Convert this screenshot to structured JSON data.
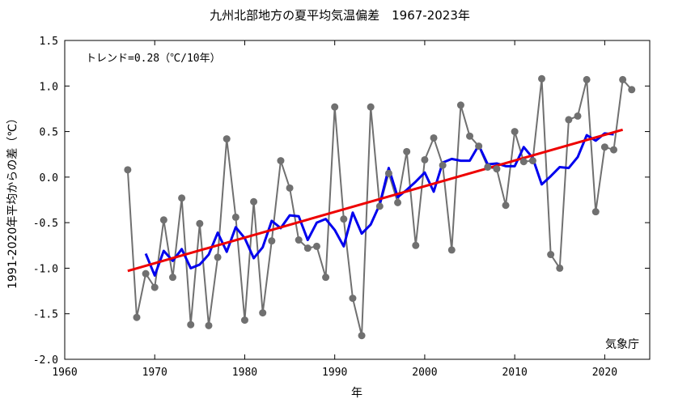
{
  "chart_data": {
    "type": "line",
    "title": "九州北部地方の夏平均気温偏差　1967-2023年",
    "xlabel": "年",
    "ylabel": "1991-2020年平均からの差（℃）",
    "trend_label": "トレンド=0.28（℃/10年）",
    "source_label": "気象庁",
    "xlim": [
      1960,
      2025
    ],
    "ylim": [
      -2.0,
      1.5
    ],
    "x_ticks": [
      1960,
      1970,
      1980,
      1990,
      2000,
      2010,
      2020
    ],
    "y_ticks": [
      -2.0,
      -1.5,
      -1.0,
      -0.5,
      0.0,
      0.5,
      1.0,
      1.5
    ],
    "y_tick_labels": [
      "-2.0",
      "-1.5",
      "-1.0",
      "-0.5",
      "0.0",
      "0.5",
      "1.0",
      "1.5"
    ],
    "grid": false,
    "series": [
      {
        "role": "annual",
        "color": "#707070",
        "x": [
          1967,
          1968,
          1969,
          1970,
          1971,
          1972,
          1973,
          1974,
          1975,
          1976,
          1977,
          1978,
          1979,
          1980,
          1981,
          1982,
          1983,
          1984,
          1985,
          1986,
          1987,
          1988,
          1989,
          1990,
          1991,
          1992,
          1993,
          1994,
          1995,
          1996,
          1997,
          1998,
          1999,
          2000,
          2001,
          2002,
          2003,
          2004,
          2005,
          2006,
          2007,
          2008,
          2009,
          2010,
          2011,
          2012,
          2013,
          2014,
          2015,
          2016,
          2017,
          2018,
          2019,
          2020,
          2021,
          2022,
          2023
        ],
        "values": [
          0.08,
          -1.54,
          -1.06,
          -1.21,
          -0.47,
          -1.1,
          -0.23,
          -1.62,
          -0.51,
          -1.63,
          -0.88,
          0.42,
          -0.44,
          -1.57,
          -0.27,
          -1.49,
          -0.7,
          0.18,
          -0.12,
          -0.69,
          -0.78,
          -0.76,
          -1.1,
          0.77,
          -0.46,
          -1.33,
          -1.74,
          0.77,
          -0.32,
          0.04,
          -0.28,
          0.28,
          -0.75,
          0.19,
          0.43,
          0.13,
          -0.8,
          0.79,
          0.45,
          0.34,
          0.11,
          0.09,
          -0.31,
          0.5,
          0.17,
          0.18,
          1.08,
          -0.85,
          -1.0,
          0.63,
          0.67,
          1.07,
          -0.38,
          0.33,
          0.3,
          1.07,
          0.96
        ]
      },
      {
        "role": "five-year running mean",
        "color": "#0000ee",
        "x": [
          1969,
          1970,
          1971,
          1972,
          1973,
          1974,
          1975,
          1976,
          1977,
          1978,
          1979,
          1980,
          1981,
          1982,
          1983,
          1984,
          1985,
          1986,
          1987,
          1988,
          1989,
          1990,
          1991,
          1992,
          1993,
          1994,
          1995,
          1996,
          1997,
          1998,
          1999,
          2000,
          2001,
          2002,
          2003,
          2004,
          2005,
          2006,
          2007,
          2008,
          2009,
          2010,
          2011,
          2012,
          2013,
          2014,
          2015,
          2016,
          2017,
          2018,
          2019,
          2020,
          2021
        ],
        "values": [
          -0.84,
          -1.08,
          -0.81,
          -0.92,
          -0.79,
          -1.0,
          -0.96,
          -0.85,
          -0.61,
          -0.82,
          -0.55,
          -0.67,
          -0.89,
          -0.77,
          -0.48,
          -0.56,
          -0.42,
          -0.43,
          -0.69,
          -0.5,
          -0.46,
          -0.58,
          -0.76,
          -0.39,
          -0.62,
          -0.52,
          -0.3,
          0.1,
          -0.22,
          -0.14,
          -0.05,
          0.05,
          -0.16,
          0.16,
          0.2,
          0.18,
          0.18,
          0.35,
          0.14,
          0.15,
          0.12,
          0.12,
          0.33,
          0.21,
          -0.08,
          0.01,
          0.11,
          0.1,
          0.22,
          0.46,
          0.4,
          0.48,
          0.47
        ]
      },
      {
        "role": "trend",
        "color": "#ee0000",
        "x": [
          1967,
          2022
        ],
        "values": [
          -1.03,
          0.52
        ]
      }
    ]
  }
}
